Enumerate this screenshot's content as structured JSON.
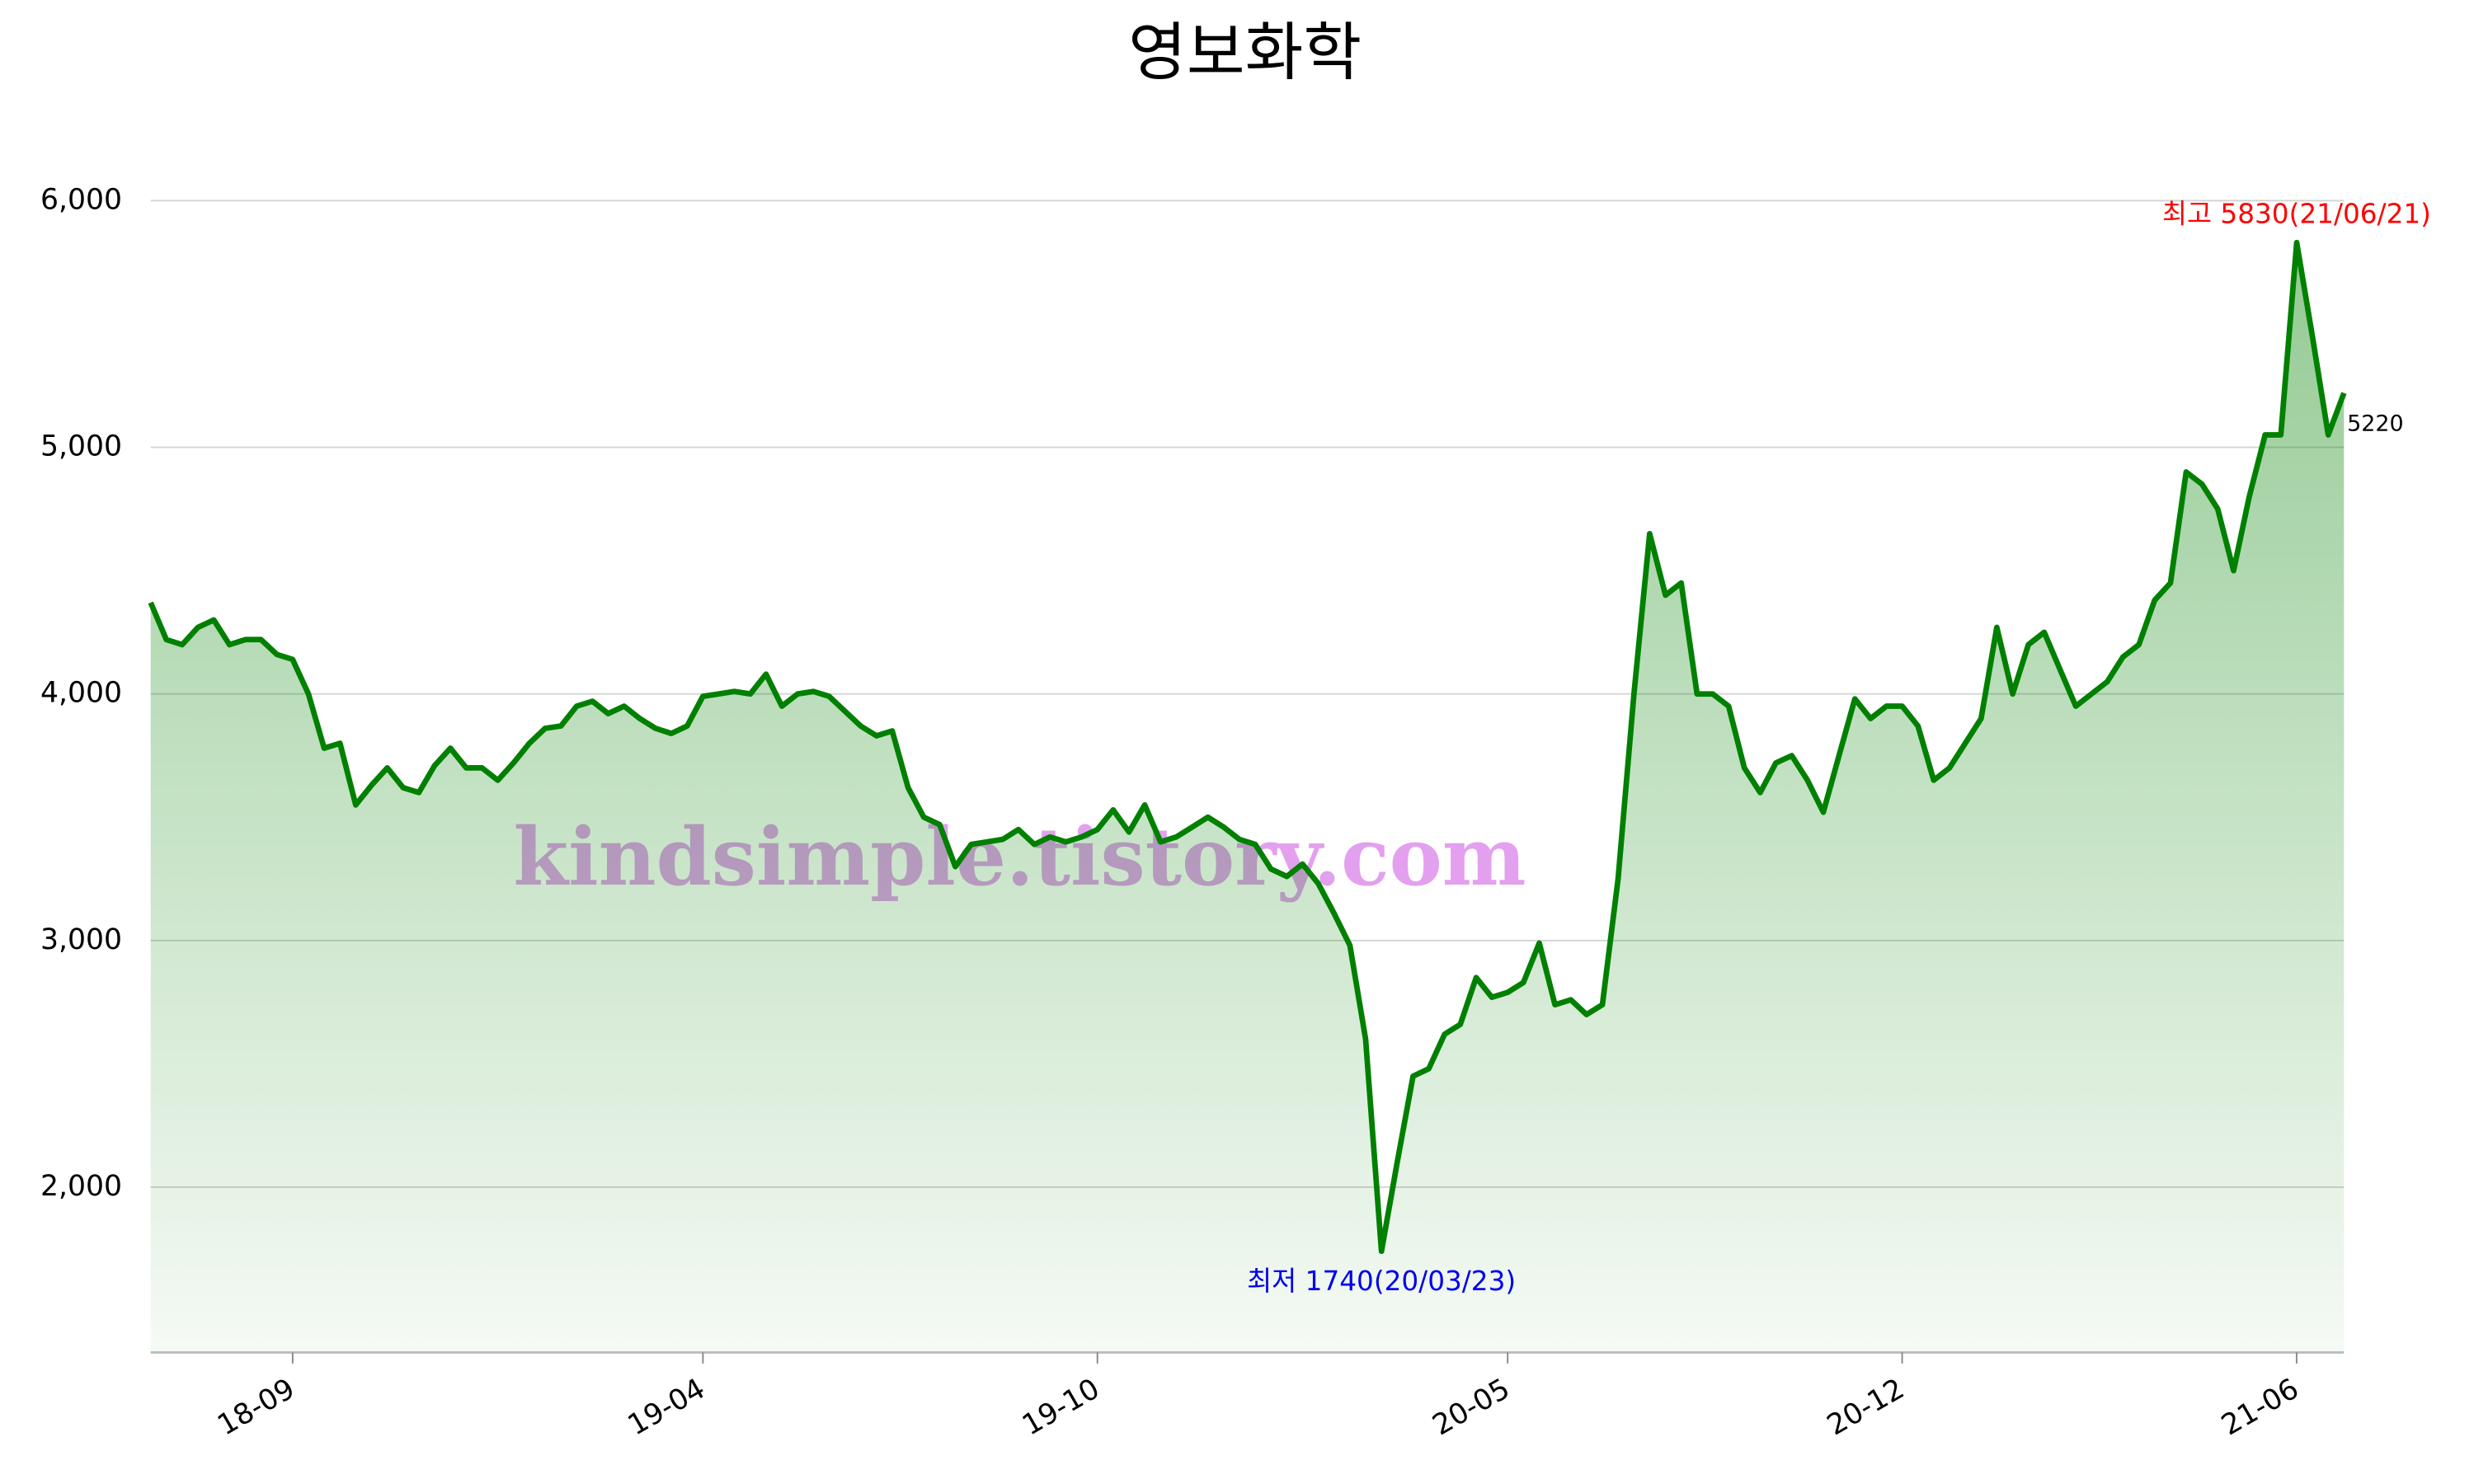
{
  "chart_data": {
    "type": "area",
    "title": "영보화학",
    "categories": [
      null,
      null,
      null,
      null,
      null,
      null,
      null,
      null,
      null,
      "18-09",
      null,
      null,
      null,
      null,
      null,
      null,
      null,
      null,
      null,
      null,
      null,
      null,
      null,
      null,
      null,
      null,
      null,
      null,
      null,
      null,
      null,
      null,
      null,
      null,
      null,
      "19-04",
      null,
      null,
      null,
      null,
      null,
      null,
      null,
      null,
      null,
      null,
      null,
      null,
      null,
      null,
      null,
      null,
      null,
      null,
      null,
      null,
      null,
      null,
      null,
      null,
      "19-10",
      null,
      null,
      null,
      null,
      null,
      null,
      null,
      null,
      null,
      null,
      null,
      null,
      null,
      null,
      null,
      null,
      null,
      null,
      null,
      null,
      null,
      null,
      null,
      null,
      null,
      "20-05",
      null,
      null,
      null,
      null,
      null,
      null,
      null,
      null,
      null,
      null,
      null,
      null,
      null,
      null,
      null,
      null,
      null,
      null,
      null,
      null,
      null,
      null,
      null,
      null,
      "20-12",
      null,
      null,
      null,
      null,
      null,
      null,
      null,
      null,
      null,
      null,
      null,
      null,
      null,
      null,
      null,
      null,
      null,
      null,
      null,
      null,
      null,
      null,
      null,
      null,
      "21-06",
      null,
      null,
      null
    ],
    "values": [
      4370,
      4220,
      4200,
      4270,
      4300,
      4200,
      4220,
      4220,
      4160,
      4140,
      4000,
      3780,
      3800,
      3550,
      3630,
      3700,
      3620,
      3600,
      3710,
      3780,
      3700,
      3700,
      3650,
      3720,
      3800,
      3860,
      3870,
      3950,
      3970,
      3920,
      3950,
      3900,
      3860,
      3840,
      3870,
      3990,
      4000,
      4010,
      4000,
      4080,
      3950,
      4000,
      4010,
      3990,
      3930,
      3870,
      3830,
      3850,
      3620,
      3500,
      3470,
      3300,
      3390,
      3400,
      3410,
      3450,
      3390,
      3420,
      3400,
      3420,
      3450,
      3530,
      3440,
      3550,
      3400,
      3420,
      3460,
      3500,
      3460,
      3410,
      3390,
      3290,
      3260,
      3310,
      3230,
      3110,
      2980,
      2600,
      1740,
      2100,
      2450,
      2480,
      2620,
      2660,
      2850,
      2770,
      2790,
      2830,
      2990,
      2740,
      2760,
      2700,
      2740,
      3250,
      4000,
      4650,
      4400,
      4450,
      4000,
      4000,
      3950,
      3700,
      3600,
      3720,
      3750,
      3650,
      3520,
      3750,
      3980,
      3900,
      3950,
      3950,
      3870,
      3650,
      3700,
      3800,
      3900,
      4270,
      4000,
      4200,
      4250,
      4100,
      3950,
      4000,
      4050,
      4150,
      4200,
      4380,
      4450,
      4900,
      4850,
      4750,
      4500,
      4800,
      5050,
      5050,
      5830,
      5450,
      5050,
      5220
    ],
    "color": "#008000",
    "ylim": [
      1330,
      6190
    ],
    "yticks": [
      {
        "value": 2000,
        "label": "2,000"
      },
      {
        "value": 3000,
        "label": "3,000"
      },
      {
        "value": 4000,
        "label": "4,000"
      },
      {
        "value": 5000,
        "label": "5,000"
      },
      {
        "value": 6000,
        "label": "6,000"
      }
    ],
    "grid": true,
    "high_label": "최고 5830(21/06/21)",
    "low_label": "최저 1740(20/03/23)",
    "watermark": "kindsimple.tistory.com"
  }
}
